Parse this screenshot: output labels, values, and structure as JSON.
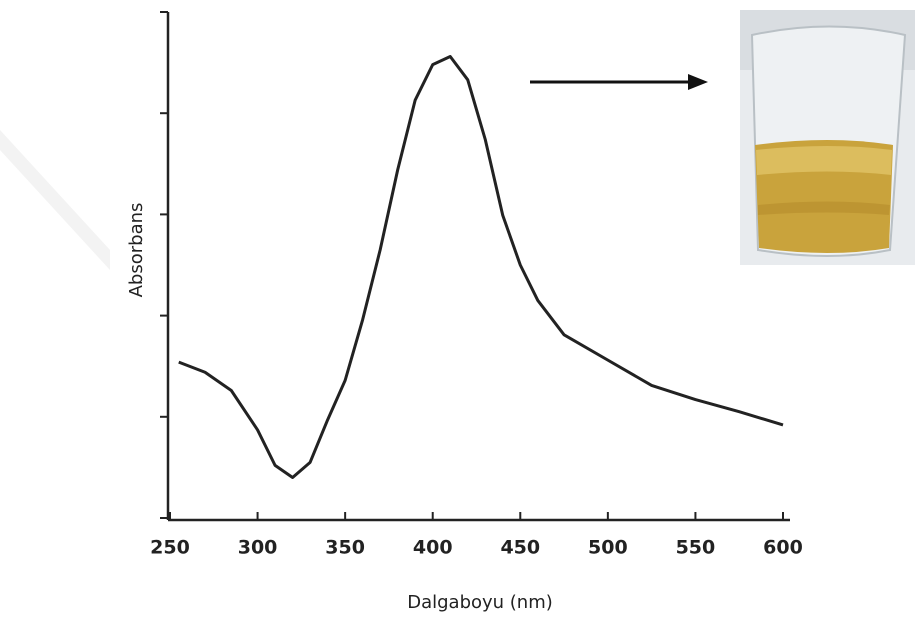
{
  "chart_data": {
    "type": "line",
    "x_label": "Dalgaboyu (nm)",
    "y_label": "Absorbans",
    "x": [
      255,
      270,
      285,
      300,
      310,
      320,
      330,
      340,
      350,
      360,
      370,
      380,
      390,
      400,
      410,
      420,
      430,
      440,
      450,
      460,
      475,
      500,
      525,
      550,
      575,
      600
    ],
    "series": [
      {
        "color": "#222222",
        "values": [
          1.54,
          1.44,
          1.26,
          0.87,
          0.52,
          0.4,
          0.55,
          0.97,
          1.36,
          1.96,
          2.65,
          3.44,
          4.13,
          4.48,
          4.56,
          4.33,
          3.74,
          2.99,
          2.5,
          2.15,
          1.81,
          1.56,
          1.31,
          1.17,
          1.05,
          0.92
        ]
      }
    ],
    "xlim": [
      250,
      600
    ],
    "xticks": [
      250,
      300,
      350,
      400,
      450,
      500,
      550,
      600
    ],
    "ylim": [
      0,
      5
    ],
    "yticks": [
      0,
      1,
      2,
      3,
      4,
      5
    ]
  }
}
